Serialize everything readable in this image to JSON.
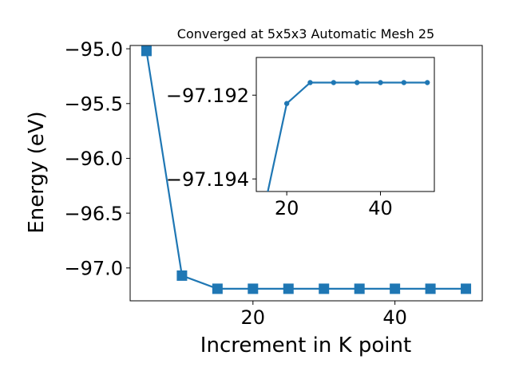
{
  "chart_data": [
    {
      "type": "line",
      "title": "Converged at 5x5x3 Automatic Mesh 25",
      "xlabel": "Increment in K point",
      "ylabel": "Energy (eV)",
      "marker": "square",
      "color": "#1f77b4",
      "xlim": [
        2.7,
        52.3
      ],
      "ylim": [
        -97.3,
        -94.97
      ],
      "xticks": [
        20,
        40
      ],
      "xtick_labels": [
        "20",
        "40"
      ],
      "yticks": [
        -97.0,
        -96.5,
        -96.0,
        -95.5,
        -95.0
      ],
      "ytick_labels": [
        "−97.0",
        "−96.5",
        "−96.0",
        "−95.5",
        "−95.0"
      ],
      "x": [
        5,
        10,
        15,
        20,
        25,
        30,
        35,
        40,
        45,
        50
      ],
      "y": [
        -95.02,
        -97.07,
        -97.19,
        -97.19,
        -97.19,
        -97.19,
        -97.19,
        -97.19,
        -97.19,
        -97.19
      ],
      "grid": false
    },
    {
      "type": "line",
      "title": "",
      "xlabel": "",
      "ylabel": "",
      "marker": "circle",
      "color": "#1f77b4",
      "xlim": [
        13.5,
        51.5
      ],
      "ylim": [
        -97.1943,
        -97.1911
      ],
      "xticks": [
        20,
        40
      ],
      "xtick_labels": [
        "20",
        "40"
      ],
      "yticks": [
        -97.194,
        -97.192
      ],
      "ytick_labels": [
        "−97.194",
        "−97.192"
      ],
      "x": [
        15,
        20,
        25,
        30,
        35,
        40,
        45,
        50
      ],
      "y": [
        -97.1948,
        -97.1922,
        -97.1917,
        -97.1917,
        -97.1917,
        -97.1917,
        -97.1917,
        -97.1917
      ],
      "grid": false
    }
  ]
}
